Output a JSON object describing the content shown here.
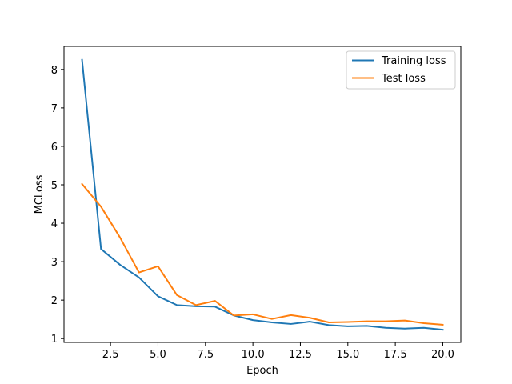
{
  "chart_data": {
    "type": "line",
    "xlabel": "Epoch",
    "ylabel": "MCLoss",
    "xlim": [
      0.05,
      20.95
    ],
    "ylim": [
      0.9,
      8.6
    ],
    "x_ticks": [
      2.5,
      5.0,
      7.5,
      10.0,
      12.5,
      15.0,
      17.5,
      20.0
    ],
    "x_tick_labels": [
      "2.5",
      "5.0",
      "7.5",
      "10.0",
      "12.5",
      "15.0",
      "17.5",
      "20.0"
    ],
    "y_ticks": [
      1,
      2,
      3,
      4,
      5,
      6,
      7,
      8
    ],
    "y_tick_labels": [
      "1",
      "2",
      "3",
      "4",
      "5",
      "6",
      "7",
      "8"
    ],
    "grid": false,
    "legend_position": "top-right",
    "x": [
      1,
      2,
      3,
      4,
      5,
      6,
      7,
      8,
      9,
      10,
      11,
      12,
      13,
      14,
      15,
      16,
      17,
      18,
      19,
      20
    ],
    "series": [
      {
        "name": "Training loss",
        "color": "#1f77b4",
        "values": [
          8.25,
          3.33,
          2.92,
          2.59,
          2.1,
          1.87,
          1.84,
          1.83,
          1.6,
          1.48,
          1.42,
          1.38,
          1.44,
          1.35,
          1.32,
          1.33,
          1.28,
          1.26,
          1.28,
          1.23
        ]
      },
      {
        "name": "Test loss",
        "color": "#ff7f0e",
        "values": [
          5.02,
          4.43,
          3.63,
          2.72,
          2.88,
          2.13,
          1.87,
          1.98,
          1.6,
          1.63,
          1.51,
          1.61,
          1.54,
          1.42,
          1.43,
          1.45,
          1.45,
          1.47,
          1.4,
          1.36
        ]
      }
    ]
  }
}
